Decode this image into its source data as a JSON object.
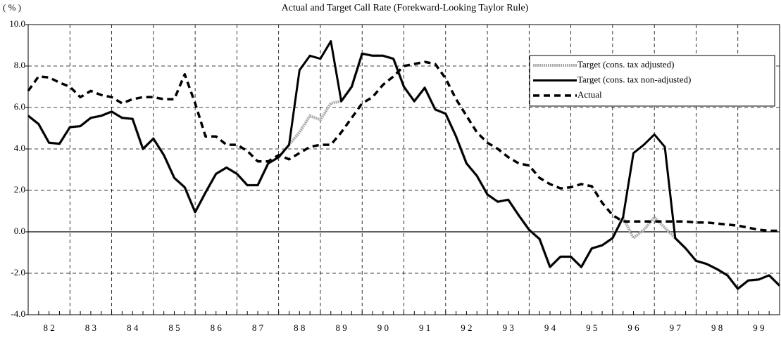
{
  "chart_data": {
    "type": "line",
    "title": "Actual and Target Call Rate (Forekward-Looking Taylor Rule)",
    "y_label": "( % )",
    "x": [
      82,
      82.25,
      82.5,
      82.75,
      83,
      83.25,
      83.5,
      83.75,
      84,
      84.25,
      84.5,
      84.75,
      85,
      85.25,
      85.5,
      85.75,
      86,
      86.25,
      86.5,
      86.75,
      87,
      87.25,
      87.5,
      87.75,
      88,
      88.25,
      88.5,
      88.75,
      89,
      89.25,
      89.5,
      89.75,
      90,
      90.25,
      90.5,
      90.75,
      91,
      91.25,
      91.5,
      91.75,
      92,
      92.25,
      92.5,
      92.75,
      93,
      93.25,
      93.5,
      93.75,
      94,
      94.25,
      94.5,
      94.75,
      95,
      95.25,
      95.5,
      95.75,
      96,
      96.25,
      96.5,
      96.75,
      97,
      97.25,
      97.5,
      97.75,
      98,
      98.25,
      98.5,
      98.75,
      99,
      99.25,
      99.5,
      99.75,
      100
    ],
    "series": [
      {
        "name": "Target (cons. tax adjusted)",
        "color": "#aaaaaa",
        "style": "dotted",
        "values": [
          5.6,
          5.2,
          4.3,
          4.25,
          5.05,
          5.1,
          5.5,
          5.6,
          5.8,
          5.5,
          5.45,
          4.0,
          4.5,
          3.7,
          2.6,
          2.15,
          0.95,
          1.9,
          2.8,
          3.1,
          2.8,
          2.25,
          2.25,
          3.3,
          3.6,
          4.2,
          4.8,
          5.6,
          5.4,
          6.2,
          6.3,
          7.0,
          8.6,
          8.5,
          8.5,
          8.35,
          7.0,
          6.3,
          6.95,
          5.9,
          5.7,
          4.6,
          3.3,
          2.7,
          1.8,
          1.45,
          1.55,
          0.8,
          0.1,
          -0.35,
          -1.7,
          -1.2,
          -1.2,
          -1.7,
          -0.8,
          -0.65,
          -0.3,
          0.7,
          -0.3,
          0.1,
          0.7,
          0.2,
          -0.3,
          -0.8,
          -1.4,
          -1.55,
          -1.8,
          -2.1,
          -2.75,
          -2.35,
          -2.3,
          -2.1,
          -2.6
        ]
      },
      {
        "name": "Target (cons. tax non-adjusted)",
        "color": "#000000",
        "style": "solid",
        "values": [
          5.6,
          5.2,
          4.3,
          4.25,
          5.05,
          5.1,
          5.5,
          5.6,
          5.8,
          5.5,
          5.45,
          4.0,
          4.5,
          3.7,
          2.6,
          2.15,
          0.95,
          1.9,
          2.8,
          3.1,
          2.8,
          2.25,
          2.25,
          3.3,
          3.6,
          4.2,
          7.8,
          8.5,
          8.35,
          9.2,
          6.3,
          7.0,
          8.6,
          8.5,
          8.5,
          8.35,
          7.0,
          6.3,
          6.95,
          5.9,
          5.7,
          4.6,
          3.3,
          2.7,
          1.8,
          1.45,
          1.55,
          0.8,
          0.1,
          -0.35,
          -1.7,
          -1.2,
          -1.2,
          -1.7,
          -0.8,
          -0.65,
          -0.3,
          0.7,
          3.8,
          4.2,
          4.7,
          4.1,
          -0.3,
          -0.8,
          -1.4,
          -1.55,
          -1.8,
          -2.1,
          -2.75,
          -2.35,
          -2.3,
          -2.1,
          -2.6
        ]
      },
      {
        "name": "Actual",
        "color": "#000000",
        "style": "dashed",
        "values": [
          6.8,
          7.5,
          7.45,
          7.2,
          7.0,
          6.5,
          6.8,
          6.6,
          6.5,
          6.2,
          6.4,
          6.5,
          6.5,
          6.4,
          6.4,
          7.6,
          6.2,
          4.6,
          4.6,
          4.2,
          4.2,
          3.9,
          3.4,
          3.4,
          3.7,
          3.5,
          3.8,
          4.1,
          4.2,
          4.2,
          4.8,
          5.5,
          6.2,
          6.5,
          7.1,
          7.5,
          8.0,
          8.1,
          8.2,
          8.1,
          7.4,
          6.4,
          5.6,
          4.8,
          4.3,
          4.0,
          3.6,
          3.3,
          3.2,
          2.6,
          2.3,
          2.1,
          2.15,
          2.3,
          2.2,
          1.4,
          0.8,
          0.5,
          0.5,
          0.5,
          0.5,
          0.5,
          0.5,
          0.5,
          0.45,
          0.45,
          0.4,
          0.35,
          0.3,
          0.2,
          0.1,
          0.05,
          0.05
        ]
      }
    ],
    "xlim": [
      82,
      100
    ],
    "xticks": [
      {
        "value": 82.5,
        "label": "8 2"
      },
      {
        "value": 83.5,
        "label": "8 3"
      },
      {
        "value": 84.5,
        "label": "8 4"
      },
      {
        "value": 85.5,
        "label": "8 5"
      },
      {
        "value": 86.5,
        "label": "8 6"
      },
      {
        "value": 87.5,
        "label": "8 7"
      },
      {
        "value": 88.5,
        "label": "8 8"
      },
      {
        "value": 89.5,
        "label": "8 9"
      },
      {
        "value": 90.5,
        "label": "9 0"
      },
      {
        "value": 91.5,
        "label": "9 1"
      },
      {
        "value": 92.5,
        "label": "9 2"
      },
      {
        "value": 93.5,
        "label": "9 3"
      },
      {
        "value": 94.5,
        "label": "9 4"
      },
      {
        "value": 95.5,
        "label": "9 5"
      },
      {
        "value": 96.5,
        "label": "9 6"
      },
      {
        "value": 97.5,
        "label": "9 7"
      },
      {
        "value": 98.5,
        "label": "9 8"
      },
      {
        "value": 99.5,
        "label": "9 9"
      }
    ],
    "x_gridlines": [
      83,
      84,
      85,
      86,
      87,
      88,
      89,
      90,
      91,
      92,
      93,
      94,
      95,
      96,
      97,
      98,
      99
    ],
    "ylim": [
      -4,
      10
    ],
    "yticks": [
      {
        "value": -4,
        "label": "-4.0"
      },
      {
        "value": -2,
        "label": "-2.0"
      },
      {
        "value": 0,
        "label": "0.0"
      },
      {
        "value": 2,
        "label": "2.0"
      },
      {
        "value": 4,
        "label": "4.0"
      },
      {
        "value": 6,
        "label": "6.0"
      },
      {
        "value": 8,
        "label": "8.0"
      },
      {
        "value": 10,
        "label": "10.0"
      }
    ],
    "grid": true,
    "legend": "upper right"
  }
}
